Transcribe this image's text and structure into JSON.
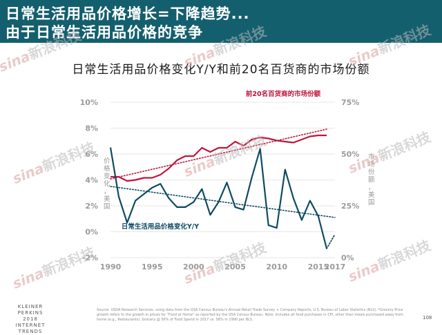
{
  "header": {
    "line1": "日常生活用品价格增长=下降趋势...",
    "line2": "由于日常生活用品价格的竞争",
    "bg_color": "#145f6e"
  },
  "watermark": {
    "brand": "sina",
    "text": "新浪科技"
  },
  "footer": {
    "logo_lines": [
      "KLEINER PERKINS",
      "2018",
      "INTERNET TRENDS"
    ],
    "source_note": "Source: USDA Research Services, using data from the USA Census Bureau's Annual Retail Trade Survey + Company Reports, U.S. Bureau of Labor Statistics (BLS). *Grocery Price growth refers to the growth in prices for \"Food at Home\" as reported by the USA Census Bureau. Note: Includes all food purchases in CPI, other than meals purchased away from home (e.g., Restaurants). Grocery @ 56% of Food Spend in 2017 vs. 58% in 1990 per BLS.",
    "page_number": "108"
  },
  "chart_data": {
    "type": "line",
    "title": "日常生活用品价格变化Y/Y和前20名百货商的市场份额",
    "x_ticks": [
      "1990",
      "1995",
      "2000",
      "2005",
      "2010",
      "2015",
      "2017"
    ],
    "xlim": [
      1990,
      2017
    ],
    "left_axis": {
      "label": "价格变化，美国",
      "ticks": [
        "-2%",
        "0%",
        "2%",
        "4%",
        "6%",
        "8%",
        "10%"
      ],
      "ylim": [
        -2,
        10
      ]
    },
    "right_axis": {
      "label": "市场份额，美国",
      "ticks": [
        "0%",
        "25%",
        "50%",
        "75%"
      ],
      "ylim": [
        0,
        75
      ]
    },
    "grid": true,
    "series": [
      {
        "name": "前20名百货商的市场份额",
        "axis": "right",
        "color": "#c0143c",
        "x": [
          1990,
          1991,
          1992,
          1993,
          1994,
          1995,
          1996,
          1997,
          1998,
          1999,
          2000,
          2001,
          2002,
          2003,
          2004,
          2005,
          2006,
          2007,
          2008,
          2009,
          2010,
          2011,
          2012,
          2013,
          2014,
          2015,
          2016
        ],
        "values": [
          39,
          39,
          37,
          37.5,
          38.5,
          38.5,
          40,
          43,
          47,
          49,
          49,
          53,
          51,
          53,
          53,
          56,
          54,
          57,
          58,
          57.5,
          56.5,
          56,
          55.5,
          57,
          58.5,
          59,
          59
        ]
      },
      {
        "name": "日常生活用品价格变化Y/Y",
        "axis": "left",
        "color": "#0d4a63",
        "x": [
          1990,
          1991,
          1992,
          1993,
          1994,
          1995,
          1996,
          1997,
          1998,
          1999,
          2000,
          2001,
          2002,
          2003,
          2004,
          2005,
          2006,
          2007,
          2008,
          2009,
          2010,
          2011,
          2012,
          2013,
          2014,
          2015,
          2016
        ],
        "values": [
          6.5,
          2.7,
          0.7,
          2.4,
          2.9,
          3.4,
          3.7,
          2.6,
          1.9,
          1.9,
          2.3,
          3.3,
          1.3,
          2.3,
          3.8,
          1.9,
          1.7,
          4.2,
          6.4,
          0.5,
          0.3,
          4.8,
          2.6,
          0.9,
          2.4,
          1.2,
          -1.3
        ]
      },
      {
        "name": "",
        "axis": "left",
        "color": "#0d4a63",
        "dashed": true,
        "x": [
          2016,
          2017
        ],
        "values": [
          -1.3,
          -0.2
        ]
      }
    ],
    "trendlines": [
      {
        "axis": "right",
        "color": "#c0143c",
        "from": [
          1990,
          38
        ],
        "to": [
          2016,
          62
        ]
      },
      {
        "axis": "left",
        "color": "#0d4a63",
        "from": [
          1990,
          3.5
        ],
        "to": [
          2017,
          1.1
        ]
      }
    ]
  }
}
